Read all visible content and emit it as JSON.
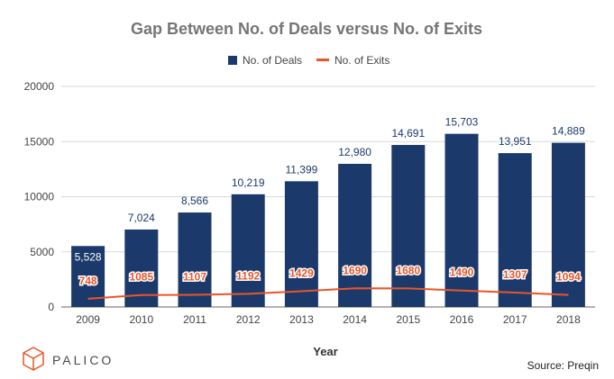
{
  "chart_data": {
    "type": "bar",
    "title": "Gap Between No. of Deals versus No. of Exits",
    "xlabel": "Year",
    "ylabel": "",
    "ylim": [
      0,
      20000
    ],
    "yticks": [
      "0",
      "5000",
      "10000",
      "15000",
      "20000"
    ],
    "grid": true,
    "legend_position": "top-center",
    "categories": [
      "2009",
      "2010",
      "2011",
      "2012",
      "2013",
      "2014",
      "2015",
      "2016",
      "2017",
      "2018"
    ],
    "series": [
      {
        "name": "No. of Deals",
        "type": "bar",
        "color": "#1b3a6b",
        "values": [
          5528,
          7024,
          8566,
          10219,
          11399,
          12980,
          14691,
          15703,
          13951,
          14889
        ],
        "labels": [
          "5,528",
          "7,024",
          "8,566",
          "10,219",
          "11,399",
          "12,980",
          "14,691",
          "15,703",
          "13,951",
          "14,889"
        ]
      },
      {
        "name": "No. of Exits",
        "type": "line",
        "color": "#e8562a",
        "values": [
          748,
          1085,
          1107,
          1192,
          1429,
          1690,
          1680,
          1490,
          1307,
          1094
        ],
        "labels": [
          "748",
          "1085",
          "1107",
          "1192",
          "1429",
          "1690",
          "1680",
          "1490",
          "1307",
          "1094"
        ]
      }
    ]
  },
  "source": "Source: Preqin",
  "brand": {
    "name": "PALICO",
    "logo_icon": "cube-icon",
    "color": "#e8562a"
  },
  "colors": {
    "deals": "#1b3a6b",
    "exits": "#e8562a",
    "grid": "#d9d9d9"
  }
}
